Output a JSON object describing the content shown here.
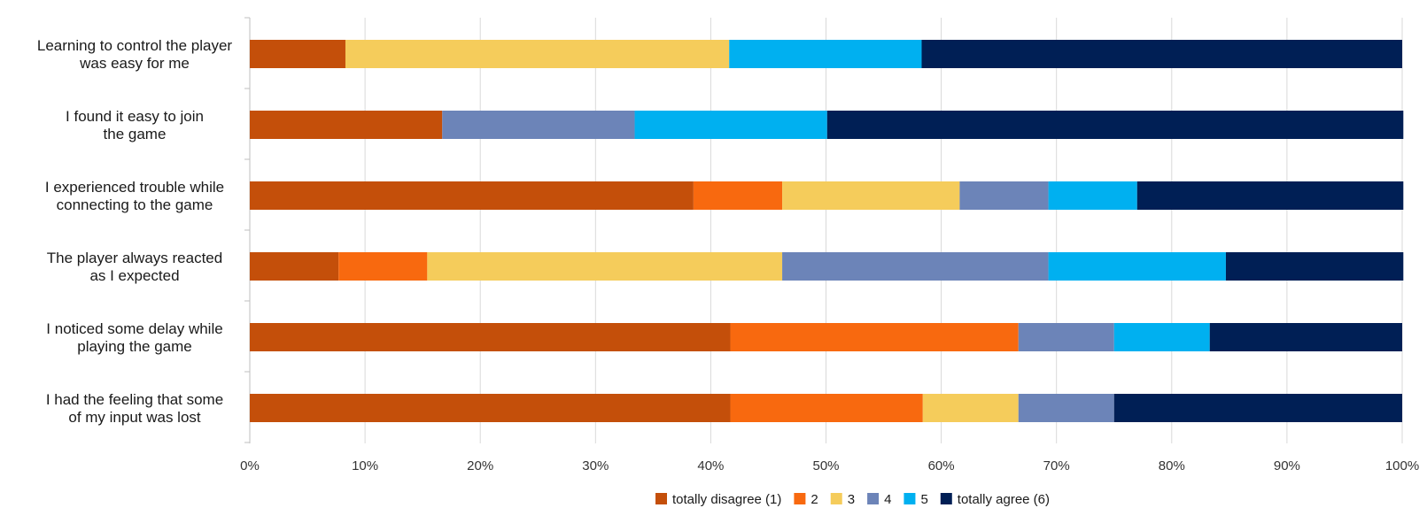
{
  "chart_data": {
    "type": "bar",
    "orientation": "horizontal",
    "stacked": "percent",
    "title": "",
    "xlabel": "",
    "ylabel": "",
    "xlim": [
      0,
      100
    ],
    "grid": true,
    "legend_position": "bottom",
    "ticks": [
      "0%",
      "10%",
      "20%",
      "30%",
      "40%",
      "50%",
      "60%",
      "70%",
      "80%",
      "90%",
      "100%"
    ],
    "categories": [
      [
        "Learning to control the player",
        "was easy for me"
      ],
      [
        "I found it easy to join",
        "the game"
      ],
      [
        "I experienced trouble while",
        "connecting to the game"
      ],
      [
        "The player always reacted",
        "as I expected"
      ],
      [
        "I noticed some delay while",
        "playing the game"
      ],
      [
        "I had the feeling that some",
        "of my input was lost"
      ]
    ],
    "series": [
      {
        "name": "totally disagree (1)",
        "color": "#C44F0A",
        "values": [
          8.3,
          16.7,
          38.5,
          7.7,
          41.7,
          41.7
        ]
      },
      {
        "name": "2",
        "color": "#F8690F",
        "values": [
          0,
          0,
          7.7,
          7.7,
          25.0,
          16.7
        ]
      },
      {
        "name": "3",
        "color": "#F5CC5B",
        "values": [
          33.3,
          0,
          15.4,
          30.8,
          0,
          8.3
        ]
      },
      {
        "name": "4",
        "color": "#6C84B8",
        "values": [
          0,
          16.7,
          7.7,
          23.1,
          8.3,
          8.3
        ]
      },
      {
        "name": "5",
        "color": "#00B0F0",
        "values": [
          16.7,
          16.7,
          7.7,
          15.4,
          8.3,
          0
        ]
      },
      {
        "name": "totally agree (6)",
        "color": "#001F55",
        "values": [
          41.7,
          50.0,
          23.1,
          15.4,
          16.7,
          25.0
        ]
      }
    ]
  }
}
